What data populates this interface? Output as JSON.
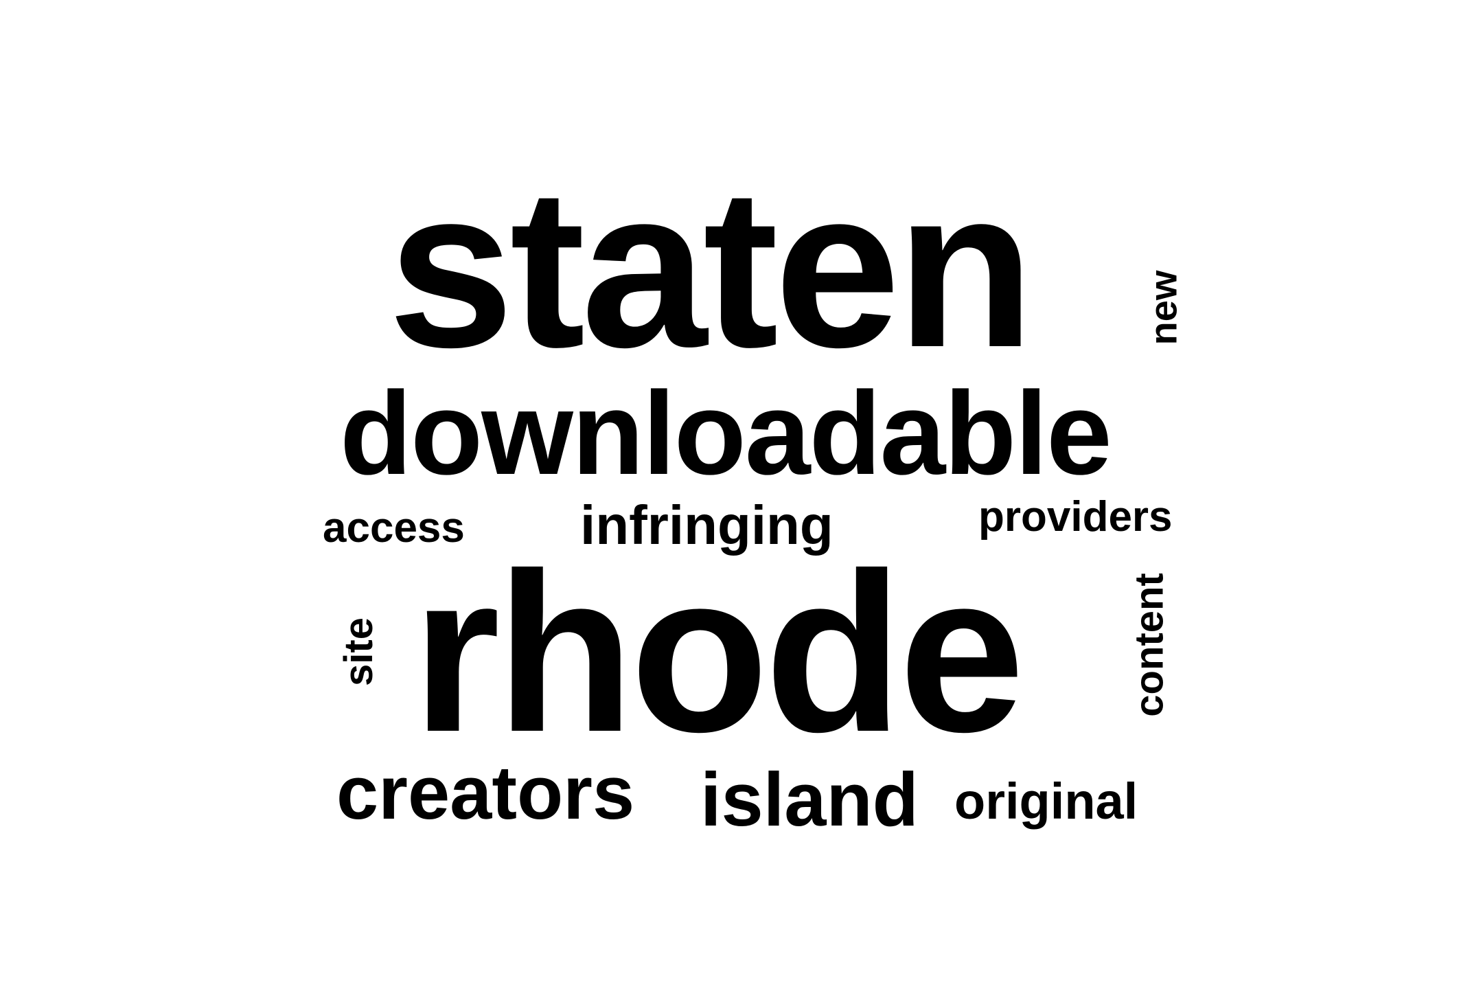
{
  "word_cloud": {
    "words": [
      {
        "id": "staten",
        "text": "staten",
        "orientation": "horizontal"
      },
      {
        "id": "new",
        "text": "new",
        "orientation": "vertical"
      },
      {
        "id": "downloadable",
        "text": "downloadable",
        "orientation": "horizontal"
      },
      {
        "id": "access",
        "text": "access",
        "orientation": "horizontal"
      },
      {
        "id": "infringing",
        "text": "infringing",
        "orientation": "horizontal"
      },
      {
        "id": "providers",
        "text": "providers",
        "orientation": "horizontal"
      },
      {
        "id": "rhode",
        "text": "rhode",
        "orientation": "horizontal"
      },
      {
        "id": "site",
        "text": "site",
        "orientation": "vertical"
      },
      {
        "id": "content",
        "text": "content",
        "orientation": "vertical"
      },
      {
        "id": "creators",
        "text": "creators",
        "orientation": "horizontal"
      },
      {
        "id": "island",
        "text": "island",
        "orientation": "horizontal"
      },
      {
        "id": "original",
        "text": "original",
        "orientation": "horizontal"
      }
    ],
    "colors": {
      "text": "#000000",
      "background": "#ffffff"
    }
  }
}
